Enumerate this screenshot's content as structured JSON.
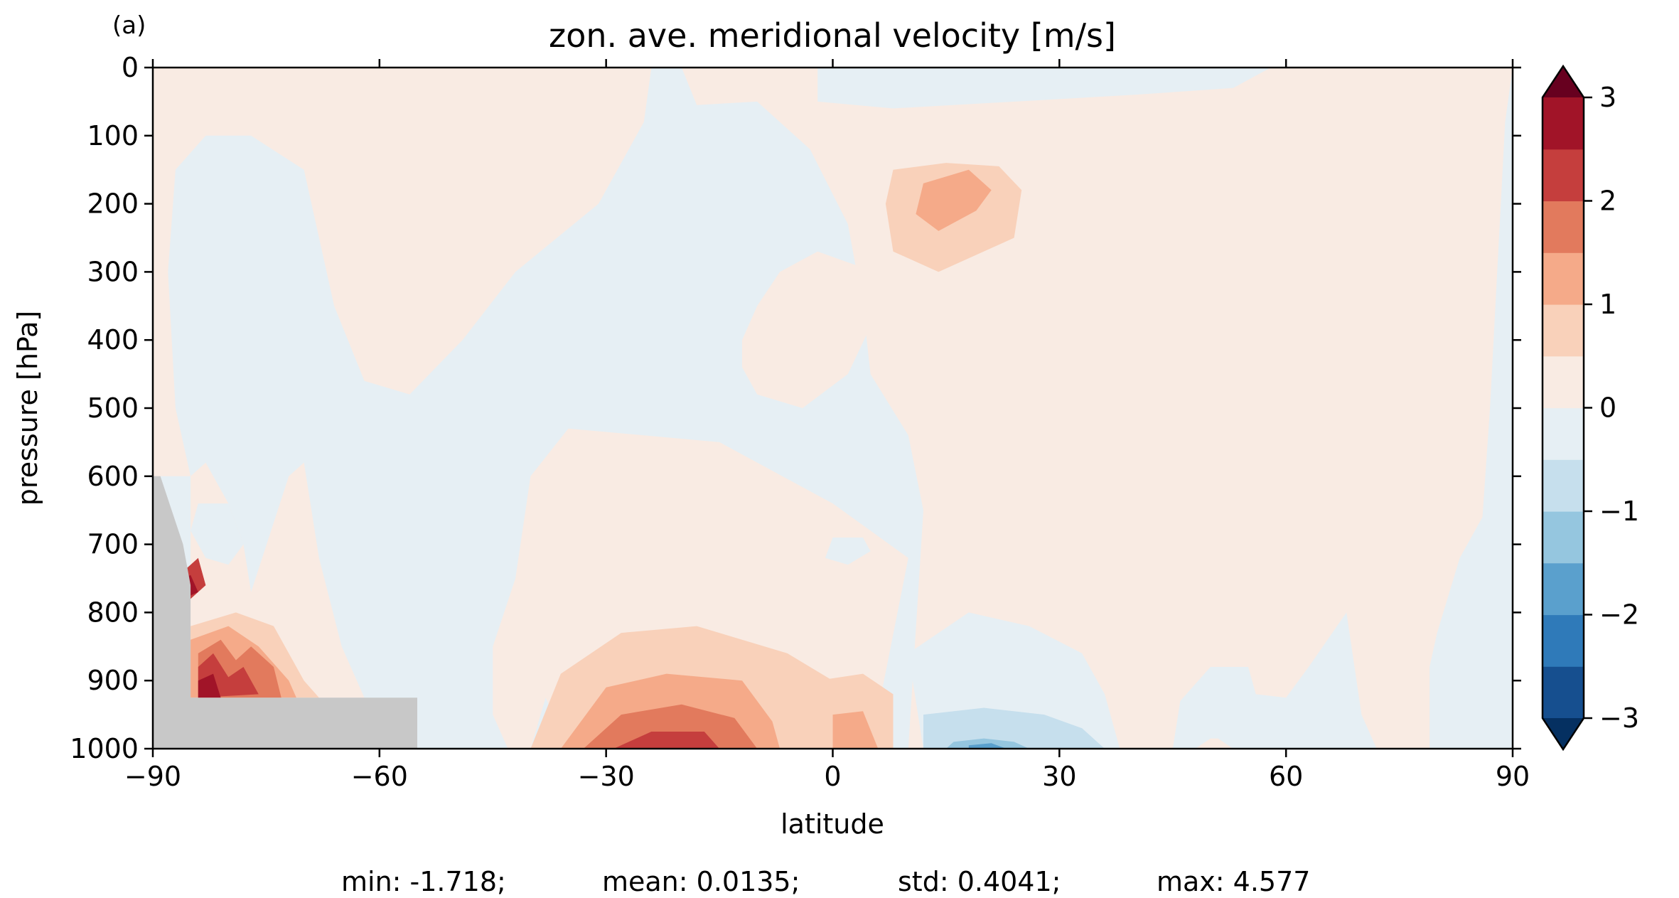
{
  "panel_label": "(a)",
  "chart_data": {
    "type": "heatmap",
    "subtype": "filled-contour",
    "title": "zon. ave. meridional velocity [m/s]",
    "xlabel": "latitude",
    "ylabel": "pressure [hPa]",
    "xlim": [
      -90,
      90
    ],
    "ylim": [
      1000,
      0
    ],
    "y_inverted": true,
    "x_ticks": [
      -90,
      -60,
      -30,
      0,
      30,
      60,
      90
    ],
    "x_tick_labels": [
      "−90",
      "−60",
      "−30",
      "0",
      "30",
      "60",
      "90"
    ],
    "y_ticks": [
      0,
      100,
      200,
      300,
      400,
      500,
      600,
      700,
      800,
      900,
      1000
    ],
    "y_tick_labels": [
      "0",
      "100",
      "200",
      "300",
      "400",
      "500",
      "600",
      "700",
      "800",
      "900",
      "1000"
    ],
    "colorbar": {
      "levels": [
        -3,
        -2.5,
        -2,
        -1.5,
        -1,
        -0.5,
        0,
        0.5,
        1,
        1.5,
        2,
        2.5,
        3
      ],
      "colors": [
        "#164f8f",
        "#2f7ab9",
        "#5aa0cd",
        "#95c6df",
        "#c6dfed",
        "#e6eff4",
        "#f9ebe3",
        "#f9d1ba",
        "#f5aa89",
        "#e27a5d",
        "#c53e3d",
        "#a11428"
      ],
      "under_color": "#053061",
      "over_color": "#67001f",
      "extend": "both",
      "ticks": [
        3,
        2,
        1,
        0,
        -1,
        -2,
        -3
      ],
      "tick_labels": [
        "3",
        "2",
        "1",
        "0",
        "−1",
        "−2",
        "−3"
      ]
    },
    "masked_color": "#c8c8c8",
    "regions": [
      {
        "level": 0.25,
        "points": [
          [
            -90,
            0
          ],
          [
            -24,
            0
          ],
          [
            -25,
            80
          ],
          [
            -31,
            200
          ],
          [
            -42,
            300
          ],
          [
            -49,
            400
          ],
          [
            -56,
            480
          ],
          [
            -62,
            460
          ],
          [
            -66,
            350
          ],
          [
            -70,
            150
          ],
          [
            -77,
            100
          ],
          [
            -83,
            100
          ],
          [
            -87,
            150
          ],
          [
            -88,
            300
          ],
          [
            -87,
            500
          ],
          [
            -85,
            600
          ],
          [
            -90,
            600
          ]
        ]
      },
      {
        "level": 0.25,
        "points": [
          [
            -85,
            600
          ],
          [
            -83,
            580
          ],
          [
            -80,
            640
          ],
          [
            -78,
            700
          ],
          [
            -77,
            770
          ],
          [
            -72,
            600
          ],
          [
            -70,
            580
          ],
          [
            -68,
            720
          ],
          [
            -65,
            850
          ],
          [
            -62,
            925
          ],
          [
            -85,
            925
          ]
        ]
      },
      {
        "level": 0.25,
        "points": [
          [
            -20,
            0
          ],
          [
            -2,
            0
          ],
          [
            -2,
            50
          ],
          [
            8,
            60
          ],
          [
            40,
            40
          ],
          [
            53,
            30
          ],
          [
            58,
            0
          ],
          [
            90,
            0
          ],
          [
            89,
            80
          ],
          [
            87,
            500
          ],
          [
            86,
            660
          ],
          [
            83,
            720
          ],
          [
            80,
            830
          ],
          [
            79,
            880
          ],
          [
            79,
            1000
          ],
          [
            72,
            1000
          ],
          [
            70,
            950
          ],
          [
            68,
            800
          ],
          [
            63,
            880
          ],
          [
            60,
            925
          ],
          [
            56,
            920
          ],
          [
            55,
            880
          ],
          [
            50,
            880
          ],
          [
            46,
            930
          ],
          [
            45,
            1000
          ],
          [
            5,
            1000
          ],
          [
            10,
            720
          ],
          [
            5,
            680
          ],
          [
            0,
            640
          ],
          [
            -15,
            550
          ],
          [
            -35,
            530
          ],
          [
            -40,
            600
          ],
          [
            -42,
            750
          ],
          [
            -45,
            850
          ],
          [
            -45,
            1000
          ],
          [
            -40,
            1000
          ],
          [
            -38,
            925
          ],
          [
            -35,
            1000
          ],
          [
            10,
            1000
          ],
          [
            12,
            650
          ],
          [
            10,
            540
          ],
          [
            5,
            450
          ],
          [
            4,
            350
          ],
          [
            2,
            230
          ],
          [
            -3,
            120
          ],
          [
            -10,
            50
          ],
          [
            -18,
            55
          ]
        ]
      },
      {
        "level": 0.25,
        "points": [
          [
            -12,
            400
          ],
          [
            -10,
            350
          ],
          [
            -7,
            300
          ],
          [
            -2,
            270
          ],
          [
            3,
            290
          ],
          [
            5,
            380
          ],
          [
            2,
            450
          ],
          [
            -4,
            500
          ],
          [
            -10,
            480
          ],
          [
            -12,
            440
          ]
        ]
      },
      {
        "level": 0.25,
        "points": [
          [
            51,
            985
          ],
          [
            53,
            1000
          ],
          [
            48,
            1000
          ],
          [
            50,
            985
          ]
        ]
      },
      {
        "level": -0.25,
        "points": [
          [
            -26,
            160
          ],
          [
            -16,
            135
          ],
          [
            -8,
            150
          ],
          [
            -9,
            250
          ],
          [
            -20,
            285
          ],
          [
            -25,
            280
          ],
          [
            -25,
            200
          ]
        ]
      },
      {
        "level": -0.25,
        "points": [
          [
            10,
            860
          ],
          [
            18,
            800
          ],
          [
            26,
            820
          ],
          [
            33,
            860
          ],
          [
            36,
            920
          ],
          [
            38,
            1000
          ],
          [
            12,
            1000
          ]
        ]
      },
      {
        "level": -0.25,
        "points": [
          [
            -56,
            920
          ],
          [
            -50,
            920
          ],
          [
            -45,
            950
          ],
          [
            -43,
            1000
          ],
          [
            -54,
            1000
          ]
        ]
      },
      {
        "level": -0.25,
        "points": [
          [
            -84,
            640
          ],
          [
            -80,
            640
          ],
          [
            -78,
            700
          ],
          [
            -80,
            730
          ],
          [
            -83,
            720
          ],
          [
            -85,
            680
          ]
        ]
      },
      {
        "level": -0.25,
        "points": [
          [
            0,
            690
          ],
          [
            4,
            690
          ],
          [
            5,
            710
          ],
          [
            2,
            730
          ],
          [
            -1,
            720
          ]
        ]
      },
      {
        "level": -0.25,
        "points": [
          [
            64,
            955
          ],
          [
            68,
            955
          ],
          [
            70,
            1000
          ],
          [
            62,
            1000
          ]
        ]
      },
      {
        "level": 0.75,
        "points": [
          [
            8,
            150
          ],
          [
            15,
            140
          ],
          [
            22,
            145
          ],
          [
            25,
            180
          ],
          [
            24,
            250
          ],
          [
            14,
            300
          ],
          [
            8,
            270
          ],
          [
            7,
            200
          ]
        ]
      },
      {
        "level": 0.75,
        "points": [
          [
            -40,
            1000
          ],
          [
            -36,
            890
          ],
          [
            -28,
            830
          ],
          [
            -18,
            820
          ],
          [
            -6,
            860
          ],
          [
            0,
            900
          ],
          [
            2,
            960
          ],
          [
            3,
            1000
          ]
        ]
      },
      {
        "level": 0.75,
        "points": [
          [
            -2,
            900
          ],
          [
            4,
            890
          ],
          [
            8,
            920
          ],
          [
            8,
            1000
          ],
          [
            -2,
            1000
          ]
        ]
      },
      {
        "level": 0.75,
        "points": [
          [
            -85,
            820
          ],
          [
            -79,
            800
          ],
          [
            -74,
            820
          ],
          [
            -70,
            900
          ],
          [
            -68,
            925
          ],
          [
            -85,
            925
          ]
        ]
      },
      {
        "level": 1.25,
        "points": [
          [
            12,
            170
          ],
          [
            18,
            150
          ],
          [
            21,
            180
          ],
          [
            19,
            210
          ],
          [
            14,
            240
          ],
          [
            11,
            215
          ]
        ]
      },
      {
        "level": 1.25,
        "points": [
          [
            -36,
            1000
          ],
          [
            -30,
            910
          ],
          [
            -22,
            890
          ],
          [
            -12,
            900
          ],
          [
            -8,
            960
          ],
          [
            -7,
            1000
          ]
        ]
      },
      {
        "level": 1.25,
        "points": [
          [
            0,
            950
          ],
          [
            4,
            945
          ],
          [
            6,
            1000
          ],
          [
            0,
            1000
          ]
        ]
      },
      {
        "level": 1.25,
        "points": [
          [
            -85,
            840
          ],
          [
            -80,
            820
          ],
          [
            -76,
            850
          ],
          [
            -72,
            900
          ],
          [
            -71,
            925
          ],
          [
            -85,
            925
          ]
        ]
      },
      {
        "level": 1.75,
        "points": [
          [
            -33,
            1000
          ],
          [
            -28,
            950
          ],
          [
            -20,
            935
          ],
          [
            -13,
            955
          ],
          [
            -10,
            1000
          ]
        ]
      },
      {
        "level": 1.75,
        "points": [
          [
            -84,
            860
          ],
          [
            -81,
            840
          ],
          [
            -79,
            870
          ],
          [
            -77,
            850
          ],
          [
            -74,
            880
          ],
          [
            -73,
            925
          ],
          [
            -84,
            925
          ]
        ]
      },
      {
        "level": 2.25,
        "points": [
          [
            -29,
            1000
          ],
          [
            -24,
            975
          ],
          [
            -17,
            975
          ],
          [
            -15,
            1000
          ]
        ]
      },
      {
        "level": 2.25,
        "points": [
          [
            -84,
            880
          ],
          [
            -82,
            860
          ],
          [
            -80,
            895
          ],
          [
            -78,
            880
          ],
          [
            -76,
            920
          ],
          [
            -84,
            925
          ]
        ]
      },
      {
        "level": 2.25,
        "points": [
          [
            -86,
            740
          ],
          [
            -84,
            720
          ],
          [
            -83,
            760
          ],
          [
            -85,
            780
          ]
        ]
      },
      {
        "level": 2.75,
        "points": [
          [
            -84,
            900
          ],
          [
            -82,
            890
          ],
          [
            -81,
            925
          ],
          [
            -84,
            925
          ]
        ]
      },
      {
        "level": 2.75,
        "points": [
          [
            -86,
            750
          ],
          [
            -85,
            745
          ],
          [
            -84,
            770
          ],
          [
            -85,
            775
          ]
        ]
      },
      {
        "level": -0.75,
        "points": [
          [
            12,
            950
          ],
          [
            20,
            940
          ],
          [
            28,
            950
          ],
          [
            33,
            970
          ],
          [
            36,
            1000
          ],
          [
            12,
            1000
          ]
        ]
      },
      {
        "level": -1.25,
        "points": [
          [
            16,
            990
          ],
          [
            20,
            985
          ],
          [
            24,
            990
          ],
          [
            26,
            1000
          ],
          [
            15,
            1000
          ]
        ]
      },
      {
        "level": -1.75,
        "points": [
          [
            18,
            995
          ],
          [
            21,
            992
          ],
          [
            23,
            1000
          ],
          [
            18,
            1000
          ]
        ]
      }
    ],
    "masked_region": [
      [
        -90,
        600
      ],
      [
        -89,
        600
      ],
      [
        -86,
        700
      ],
      [
        -85,
        760
      ],
      [
        -85,
        925
      ],
      [
        -55,
        925
      ],
      [
        -55,
        1000
      ],
      [
        -90,
        1000
      ]
    ]
  },
  "stats": {
    "min": "min: -1.718;",
    "mean": "mean: 0.0135;",
    "std": "std: 0.4041;",
    "max": "max: 4.577"
  }
}
